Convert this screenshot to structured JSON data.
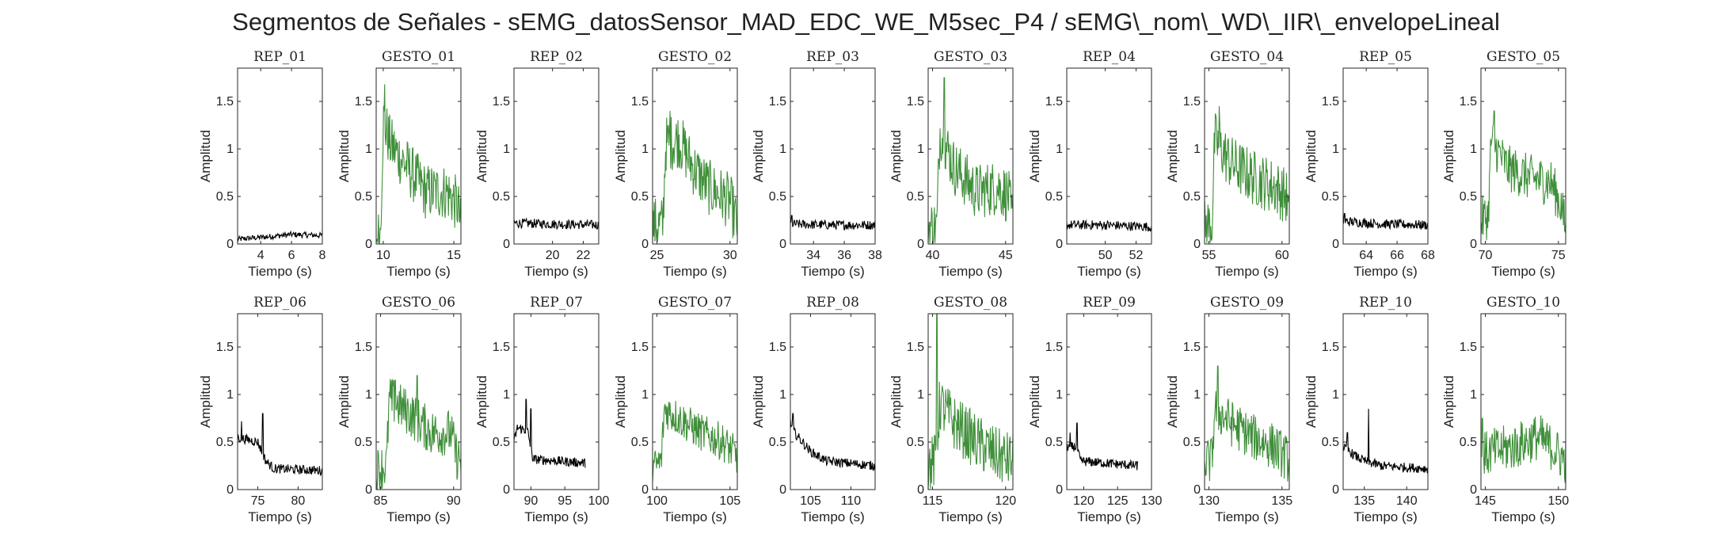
{
  "figure": {
    "title": "Segmentos de Señales - sEMG_datosSensor_MAD_EDC_WE_M5sec_P4 / sEMG\\_nom\\_WD\\_IIR\\_envelopeLineal"
  },
  "colors": {
    "rep": "#000000",
    "gesto": "#3f8f3a",
    "axis": "#262626"
  },
  "chart_data": {
    "type": "line",
    "shared_ylabel": "Amplitud",
    "shared_xlabel": "Tiempo (s)",
    "shared_ylim": [
      0,
      1.85
    ],
    "shared_yticks": [
      0,
      0.5,
      1,
      1.5
    ],
    "panels": [
      {
        "title": "REP_01",
        "kind": "rep",
        "xlim": [
          2.5,
          8
        ],
        "xticks": [
          4,
          6,
          8
        ],
        "xtick_labels": [
          "4",
          "6",
          "8"
        ],
        "profile": [
          [
            2.5,
            0.05
          ],
          [
            4,
            0.07
          ],
          [
            6,
            0.1
          ],
          [
            8,
            0.09
          ]
        ],
        "noise": 0.03,
        "spikes": []
      },
      {
        "title": "GESTO_01",
        "kind": "gesto",
        "xlim": [
          9.5,
          15.5
        ],
        "xticks": [
          10,
          15
        ],
        "xtick_labels": [
          "10",
          "15"
        ],
        "profile": [
          [
            9.5,
            0.05
          ],
          [
            9.8,
            0.1
          ],
          [
            10,
            1.3
          ],
          [
            10.5,
            1.05
          ],
          [
            11.5,
            0.85
          ],
          [
            13,
            0.55
          ],
          [
            14.5,
            0.55
          ],
          [
            15.3,
            0.4
          ],
          [
            15.5,
            0.15
          ]
        ],
        "noise": 0.3,
        "spikes": [
          [
            10.1,
            1.68
          ]
        ]
      },
      {
        "title": "REP_02",
        "kind": "rep",
        "xlim": [
          17.5,
          23
        ],
        "xticks": [
          20,
          22
        ],
        "xtick_labels": [
          "20",
          "22"
        ],
        "profile": [
          [
            17.5,
            0.22
          ],
          [
            20,
            0.21
          ],
          [
            23,
            0.2
          ]
        ],
        "noise": 0.05,
        "spikes": []
      },
      {
        "title": "GESTO_02",
        "kind": "gesto",
        "xlim": [
          24.7,
          30.5
        ],
        "xticks": [
          25,
          30
        ],
        "xtick_labels": [
          "25",
          "30"
        ],
        "profile": [
          [
            24.7,
            0.2
          ],
          [
            25.4,
            0.2
          ],
          [
            25.6,
            1.05
          ],
          [
            26.5,
            1.1
          ],
          [
            27.5,
            0.8
          ],
          [
            28.5,
            0.6
          ],
          [
            30,
            0.45
          ],
          [
            30.5,
            0.2
          ]
        ],
        "noise": 0.3,
        "spikes": [
          [
            25.9,
            1.4
          ]
        ]
      },
      {
        "title": "REP_03",
        "kind": "rep",
        "xlim": [
          32.5,
          38
        ],
        "xticks": [
          34,
          36,
          38
        ],
        "xtick_labels": [
          "34",
          "36",
          "38"
        ],
        "profile": [
          [
            32.5,
            0.21
          ],
          [
            35,
            0.2
          ],
          [
            38,
            0.2
          ]
        ],
        "noise": 0.05,
        "spikes": [
          [
            32.6,
            0.3
          ]
        ]
      },
      {
        "title": "GESTO_03",
        "kind": "gesto",
        "xlim": [
          39.7,
          45.5
        ],
        "xticks": [
          40,
          45
        ],
        "xtick_labels": [
          "40",
          "45"
        ],
        "profile": [
          [
            39.7,
            0.18
          ],
          [
            40.3,
            0.18
          ],
          [
            40.5,
            1.2
          ],
          [
            41.5,
            0.8
          ],
          [
            43,
            0.55
          ],
          [
            44.5,
            0.6
          ],
          [
            45.2,
            0.5
          ],
          [
            45.5,
            0.2
          ]
        ],
        "noise": 0.3,
        "spikes": [
          [
            40.8,
            1.75
          ]
        ]
      },
      {
        "title": "REP_04",
        "kind": "rep",
        "xlim": [
          47.5,
          53
        ],
        "xticks": [
          50,
          52
        ],
        "xtick_labels": [
          "50",
          "52"
        ],
        "profile": [
          [
            47.5,
            0.2
          ],
          [
            50,
            0.2
          ],
          [
            53,
            0.18
          ]
        ],
        "noise": 0.05,
        "spikes": []
      },
      {
        "title": "GESTO_04",
        "kind": "gesto",
        "xlim": [
          54.7,
          60.5
        ],
        "xticks": [
          55,
          60
        ],
        "xtick_labels": [
          "55",
          "60"
        ],
        "profile": [
          [
            54.7,
            0.2
          ],
          [
            55.2,
            0.2
          ],
          [
            55.4,
            1.1
          ],
          [
            56.5,
            0.85
          ],
          [
            58,
            0.7
          ],
          [
            59.5,
            0.6
          ],
          [
            60.3,
            0.5
          ],
          [
            60.5,
            0.25
          ]
        ],
        "noise": 0.3,
        "spikes": [
          [
            55.7,
            1.45
          ]
        ]
      },
      {
        "title": "REP_05",
        "kind": "rep",
        "xlim": [
          62.5,
          68
        ],
        "xticks": [
          64,
          66,
          68
        ],
        "xtick_labels": [
          "64",
          "66",
          "68"
        ],
        "profile": [
          [
            62.5,
            0.24
          ],
          [
            65,
            0.21
          ],
          [
            68,
            0.2
          ]
        ],
        "noise": 0.05,
        "spikes": [
          [
            62.6,
            0.32
          ]
        ]
      },
      {
        "title": "GESTO_05",
        "kind": "gesto",
        "xlim": [
          69.7,
          75.5
        ],
        "xticks": [
          70,
          75
        ],
        "xtick_labels": [
          "70",
          "75"
        ],
        "profile": [
          [
            69.7,
            0.25
          ],
          [
            70.2,
            0.3
          ],
          [
            70.4,
            1.1
          ],
          [
            71.5,
            0.8
          ],
          [
            73,
            0.7
          ],
          [
            74.5,
            0.65
          ],
          [
            75.2,
            0.4
          ],
          [
            75.5,
            0.15
          ]
        ],
        "noise": 0.25,
        "spikes": [
          [
            70.6,
            1.4
          ]
        ]
      },
      {
        "title": "REP_06",
        "kind": "rep",
        "xlim": [
          72.5,
          83
        ],
        "xticks": [
          75,
          80
        ],
        "xtick_labels": [
          "75",
          "80"
        ],
        "profile": [
          [
            72.5,
            0.55
          ],
          [
            75,
            0.5
          ],
          [
            76,
            0.3
          ],
          [
            77,
            0.22
          ],
          [
            83,
            0.2
          ]
        ],
        "noise": 0.05,
        "spikes": [
          [
            73,
            0.72
          ],
          [
            75.6,
            0.8
          ]
        ]
      },
      {
        "title": "GESTO_06",
        "kind": "gesto",
        "xlim": [
          84.7,
          90.5
        ],
        "xticks": [
          85,
          90
        ],
        "xtick_labels": [
          "85",
          "90"
        ],
        "profile": [
          [
            84.7,
            0.2
          ],
          [
            85.4,
            0.25
          ],
          [
            85.6,
            0.95
          ],
          [
            87,
            0.8
          ],
          [
            88.5,
            0.6
          ],
          [
            89.8,
            0.6
          ],
          [
            90.2,
            0.35
          ],
          [
            90.5,
            0.3
          ]
        ],
        "noise": 0.25,
        "spikes": [
          [
            86,
            1.15
          ],
          [
            87.5,
            1.2
          ]
        ]
      },
      {
        "title": "REP_07",
        "kind": "rep",
        "xlim": [
          87.5,
          100
        ],
        "xticks": [
          90,
          95,
          100
        ],
        "xtick_labels": [
          "90",
          "95",
          "100"
        ],
        "profile": [
          [
            87.5,
            0.5
          ],
          [
            88,
            0.65
          ],
          [
            89.5,
            0.62
          ],
          [
            90.3,
            0.32
          ],
          [
            98,
            0.28
          ]
        ],
        "noise": 0.05,
        "spikes": [
          [
            89.3,
            0.95
          ],
          [
            90,
            0.85
          ]
        ]
      },
      {
        "title": "GESTO_07",
        "kind": "gesto",
        "xlim": [
          99.7,
          105.5
        ],
        "xticks": [
          100,
          105
        ],
        "xtick_labels": [
          "100",
          "105"
        ],
        "profile": [
          [
            99.7,
            0.22
          ],
          [
            100.3,
            0.3
          ],
          [
            100.5,
            0.85
          ],
          [
            101.5,
            0.75
          ],
          [
            103,
            0.6
          ],
          [
            104.5,
            0.5
          ],
          [
            105.5,
            0.35
          ]
        ],
        "noise": 0.2,
        "spikes": []
      },
      {
        "title": "REP_08",
        "kind": "rep",
        "xlim": [
          102.5,
          113
        ],
        "xticks": [
          105,
          110
        ],
        "xtick_labels": [
          "105",
          "110"
        ],
        "profile": [
          [
            102.5,
            0.7
          ],
          [
            103,
            0.6
          ],
          [
            105,
            0.4
          ],
          [
            107,
            0.3
          ],
          [
            113,
            0.25
          ]
        ],
        "noise": 0.05,
        "spikes": [
          [
            102.8,
            0.8
          ]
        ]
      },
      {
        "title": "GESTO_08",
        "kind": "gesto",
        "xlim": [
          114.7,
          120.5
        ],
        "xticks": [
          115,
          120
        ],
        "xtick_labels": [
          "115",
          "120"
        ],
        "profile": [
          [
            114.7,
            0.25
          ],
          [
            115.2,
            0.3
          ],
          [
            115.5,
            0.9
          ],
          [
            116.5,
            0.7
          ],
          [
            118,
            0.5
          ],
          [
            119.5,
            0.35
          ],
          [
            120.5,
            0.3
          ]
        ],
        "noise": 0.3,
        "spikes": [
          [
            115.3,
            1.85
          ]
        ]
      },
      {
        "title": "REP_09",
        "kind": "rep",
        "xlim": [
          117.5,
          130
        ],
        "xticks": [
          120,
          125,
          130
        ],
        "xtick_labels": [
          "120",
          "125",
          "130"
        ],
        "profile": [
          [
            117.5,
            0.45
          ],
          [
            119,
            0.45
          ],
          [
            119.5,
            0.3
          ],
          [
            128,
            0.25
          ]
        ],
        "noise": 0.05,
        "spikes": [
          [
            118,
            0.6
          ],
          [
            119,
            0.7
          ]
        ]
      },
      {
        "title": "GESTO_09",
        "kind": "gesto",
        "xlim": [
          129.7,
          135.5
        ],
        "xticks": [
          130,
          135
        ],
        "xtick_labels": [
          "130",
          "135"
        ],
        "profile": [
          [
            129.7,
            0.3
          ],
          [
            130.2,
            0.3
          ],
          [
            130.4,
            0.85
          ],
          [
            131.5,
            0.7
          ],
          [
            133,
            0.55
          ],
          [
            134.5,
            0.45
          ],
          [
            135.5,
            0.3
          ]
        ],
        "noise": 0.25,
        "spikes": [
          [
            130.6,
            1.3
          ]
        ]
      },
      {
        "title": "REP_10",
        "kind": "rep",
        "xlim": [
          132.5,
          142.5
        ],
        "xticks": [
          135,
          140
        ],
        "xtick_labels": [
          "135",
          "140"
        ],
        "profile": [
          [
            132.5,
            0.45
          ],
          [
            134,
            0.35
          ],
          [
            135,
            0.3
          ],
          [
            137,
            0.25
          ],
          [
            142.5,
            0.22
          ]
        ],
        "noise": 0.05,
        "spikes": [
          [
            133,
            0.6
          ],
          [
            135.5,
            0.85
          ]
        ]
      },
      {
        "title": "GESTO_10",
        "kind": "gesto",
        "xlim": [
          144.7,
          150.5
        ],
        "xticks": [
          145,
          150
        ],
        "xtick_labels": [
          "145",
          "150"
        ],
        "profile": [
          [
            144.7,
            0.35
          ],
          [
            145.5,
            0.4
          ],
          [
            147,
            0.45
          ],
          [
            148.5,
            0.55
          ],
          [
            149.5,
            0.45
          ],
          [
            150.5,
            0.3
          ]
        ],
        "noise": 0.25,
        "spikes": [
          [
            144.8,
            0.75
          ],
          [
            148.8,
            0.78
          ]
        ]
      }
    ]
  }
}
